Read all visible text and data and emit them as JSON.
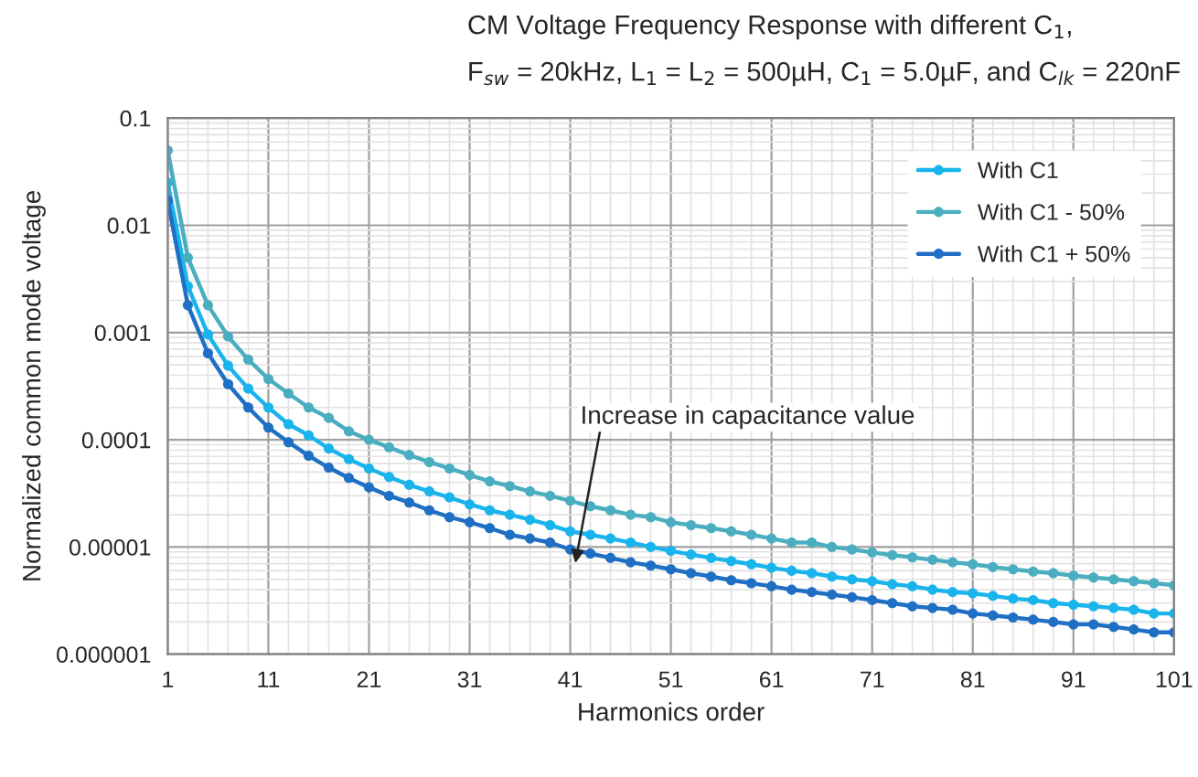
{
  "chart_data": {
    "type": "line",
    "title": "CM Voltage Frequency Response with different C$_{1}$,",
    "subtitle": "F$_{sw}$ = 20kHz, L$_{1}$ = L$_{2}$ = 500µH, C$_{1}$ = 5.0µF, and C$_{lk}$ = 220nF",
    "xlabel": "Harmonics order",
    "ylabel": "Normalized common mode voltage",
    "x": [
      1,
      3,
      5,
      7,
      9,
      11,
      13,
      15,
      17,
      19,
      21,
      23,
      25,
      27,
      29,
      31,
      33,
      35,
      37,
      39,
      41,
      43,
      45,
      47,
      49,
      51,
      53,
      55,
      57,
      59,
      61,
      63,
      65,
      67,
      69,
      71,
      73,
      75,
      77,
      79,
      81,
      83,
      85,
      87,
      89,
      91,
      93,
      95,
      97,
      99,
      101
    ],
    "series": [
      {
        "name": "With C1",
        "color": "#1ab4ec",
        "values": [
          0.025,
          0.0027,
          0.00096,
          0.00049,
          0.0003,
          0.0002,
          0.00014,
          0.00011,
          8.3e-05,
          6.6e-05,
          5.4e-05,
          4.5e-05,
          3.8e-05,
          3.3e-05,
          2.9e-05,
          2.5e-05,
          2.2e-05,
          2e-05,
          1.8e-05,
          1.6e-05,
          1.4e-05,
          1.3e-05,
          1.2e-05,
          1.1e-05,
          1e-05,
          9.2e-06,
          8.5e-06,
          7.9e-06,
          7.4e-06,
          6.9e-06,
          6.4e-06,
          6e-06,
          5.7e-06,
          5.3e-06,
          5e-06,
          4.8e-06,
          4.5e-06,
          4.3e-06,
          4e-06,
          3.8e-06,
          3.7e-06,
          3.5e-06,
          3.3e-06,
          3.2e-06,
          3e-06,
          2.9e-06,
          2.8e-06,
          2.7e-06,
          2.6e-06,
          2.4e-06,
          2.4e-06
        ]
      },
      {
        "name": "With C1 - 50%",
        "color": "#4aaec0",
        "values": [
          0.05,
          0.005,
          0.0018,
          0.00092,
          0.00056,
          0.00037,
          0.00027,
          0.0002,
          0.00016,
          0.00012,
          0.0001,
          8.5e-05,
          7.2e-05,
          6.2e-05,
          5.4e-05,
          4.7e-05,
          4.1e-05,
          3.7e-05,
          3.3e-05,
          3e-05,
          2.7e-05,
          2.4e-05,
          2.2e-05,
          2e-05,
          1.9e-05,
          1.7e-05,
          1.6e-05,
          1.5e-05,
          1.4e-05,
          1.3e-05,
          1.2e-05,
          1.1e-05,
          1.1e-05,
          1e-05,
          9.5e-06,
          8.9e-06,
          8.4e-06,
          8e-06,
          7.6e-06,
          7.2e-06,
          6.9e-06,
          6.5e-06,
          6.2e-06,
          5.9e-06,
          5.7e-06,
          5.4e-06,
          5.2e-06,
          5e-06,
          4.8e-06,
          4.6e-06,
          4.4e-06
        ]
      },
      {
        "name": "With C1 + 50%",
        "color": "#1f6fc4",
        "values": [
          0.017,
          0.0018,
          0.00064,
          0.00033,
          0.0002,
          0.00013,
          9.5e-05,
          7.1e-05,
          5.5e-05,
          4.4e-05,
          3.6e-05,
          3e-05,
          2.6e-05,
          2.2e-05,
          1.9e-05,
          1.7e-05,
          1.5e-05,
          1.3e-05,
          1.2e-05,
          1.1e-05,
          9.5e-06,
          8.7e-06,
          7.9e-06,
          7.2e-06,
          6.7e-06,
          6.2e-06,
          5.7e-06,
          5.3e-06,
          4.9e-06,
          4.6e-06,
          4.3e-06,
          4e-06,
          3.8e-06,
          3.6e-06,
          3.4e-06,
          3.2e-06,
          3e-06,
          2.8e-06,
          2.7e-06,
          2.6e-06,
          2.4e-06,
          2.3e-06,
          2.2e-06,
          2.1e-06,
          2e-06,
          1.9e-06,
          1.9e-06,
          1.8e-06,
          1.7e-06,
          1.6e-06,
          1.6e-06
        ]
      }
    ],
    "log": "y",
    "xlim": [
      1,
      101
    ],
    "xticks": [
      1,
      11,
      21,
      31,
      41,
      51,
      61,
      71,
      81,
      91,
      101
    ],
    "ylim": [
      1e-06,
      0.1
    ],
    "yticks": [
      {
        "value": 1e-06,
        "label": "0.000001"
      },
      {
        "value": 1e-05,
        "label": "0.00001"
      },
      {
        "value": 0.0001,
        "label": "0.0001"
      },
      {
        "value": 0.001,
        "label": "0.001"
      },
      {
        "value": 0.01,
        "label": "0.01"
      },
      {
        "value": 0.1,
        "label": "0.1"
      }
    ],
    "grid": true,
    "legend": "top right",
    "marker": "circle",
    "line_style": "solid",
    "annotations": [
      "Increase in capacitance value"
    ]
  }
}
